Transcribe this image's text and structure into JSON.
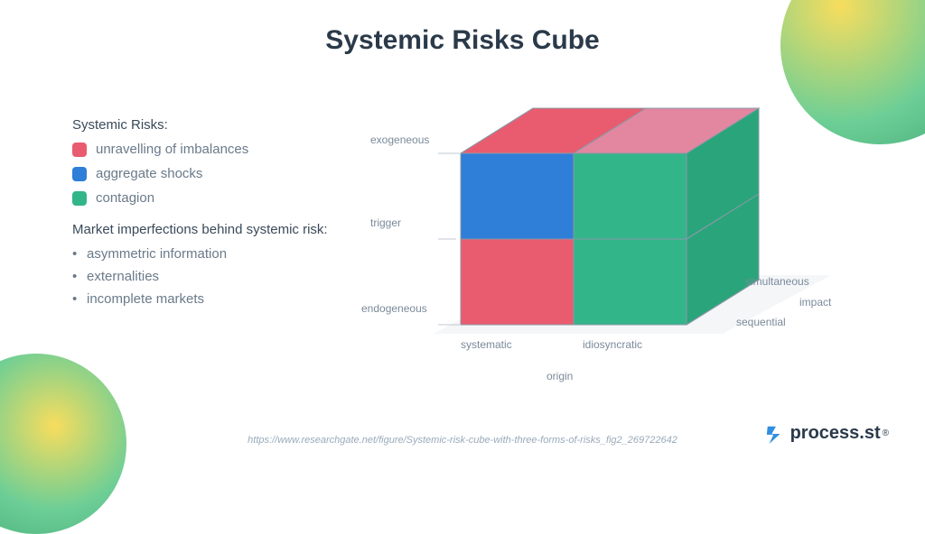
{
  "title": "Systemic Risks Cube",
  "legend": {
    "heading": "Systemic Risks:",
    "items": [
      {
        "label": "unravelling of imbalances",
        "color": "#e95c6f"
      },
      {
        "label": "aggregate shocks",
        "color": "#2f7ed8"
      },
      {
        "label": "contagion",
        "color": "#33b58a"
      }
    ]
  },
  "imperfections": {
    "heading": "Market imperfections behind systemic risk:",
    "items": [
      "asymmetric information",
      "externalities",
      "incomplete markets"
    ]
  },
  "axes": {
    "trigger": {
      "label": "trigger",
      "ticks": [
        "exogeneous",
        "endogeneous"
      ]
    },
    "origin": {
      "label": "origin",
      "ticks": [
        "systematic",
        "idiosyncratic"
      ]
    },
    "impact": {
      "label": "impact",
      "ticks": [
        "simultaneous",
        "sequential"
      ]
    }
  },
  "cube": {
    "type": "3d-cube-diagram",
    "edge_color": "#8a98a6",
    "front_faces": [
      {
        "pos": "top-left",
        "fill": "#2f7ed8"
      },
      {
        "pos": "top-right",
        "fill": "#33b58a"
      },
      {
        "pos": "bottom-left",
        "fill": "#e95c6f"
      },
      {
        "pos": "bottom-right",
        "fill": "#33b58a"
      }
    ],
    "top_faces": [
      {
        "pos": "left",
        "fill": "#e95c6f"
      },
      {
        "pos": "right",
        "fill": "#e386a0"
      }
    ],
    "side_faces": [
      {
        "pos": "top",
        "fill": "#2aa57b"
      },
      {
        "pos": "bottom",
        "fill": "#2aa57b"
      }
    ],
    "floor_color": "#f4f6f8"
  },
  "source": "https://www.researchgate.net/figure/Systemic-risk-cube-with-three-forms-of-risks_fig2_269722642",
  "brand": {
    "text": "process.st",
    "reg": "®",
    "icon_color": "#2f8fe0"
  },
  "styling": {
    "title_fontsize": 30,
    "label_fontsize": 12,
    "text_color": "#6a7a8a",
    "heading_color": "#3a4a5a",
    "background": "#ffffff"
  }
}
